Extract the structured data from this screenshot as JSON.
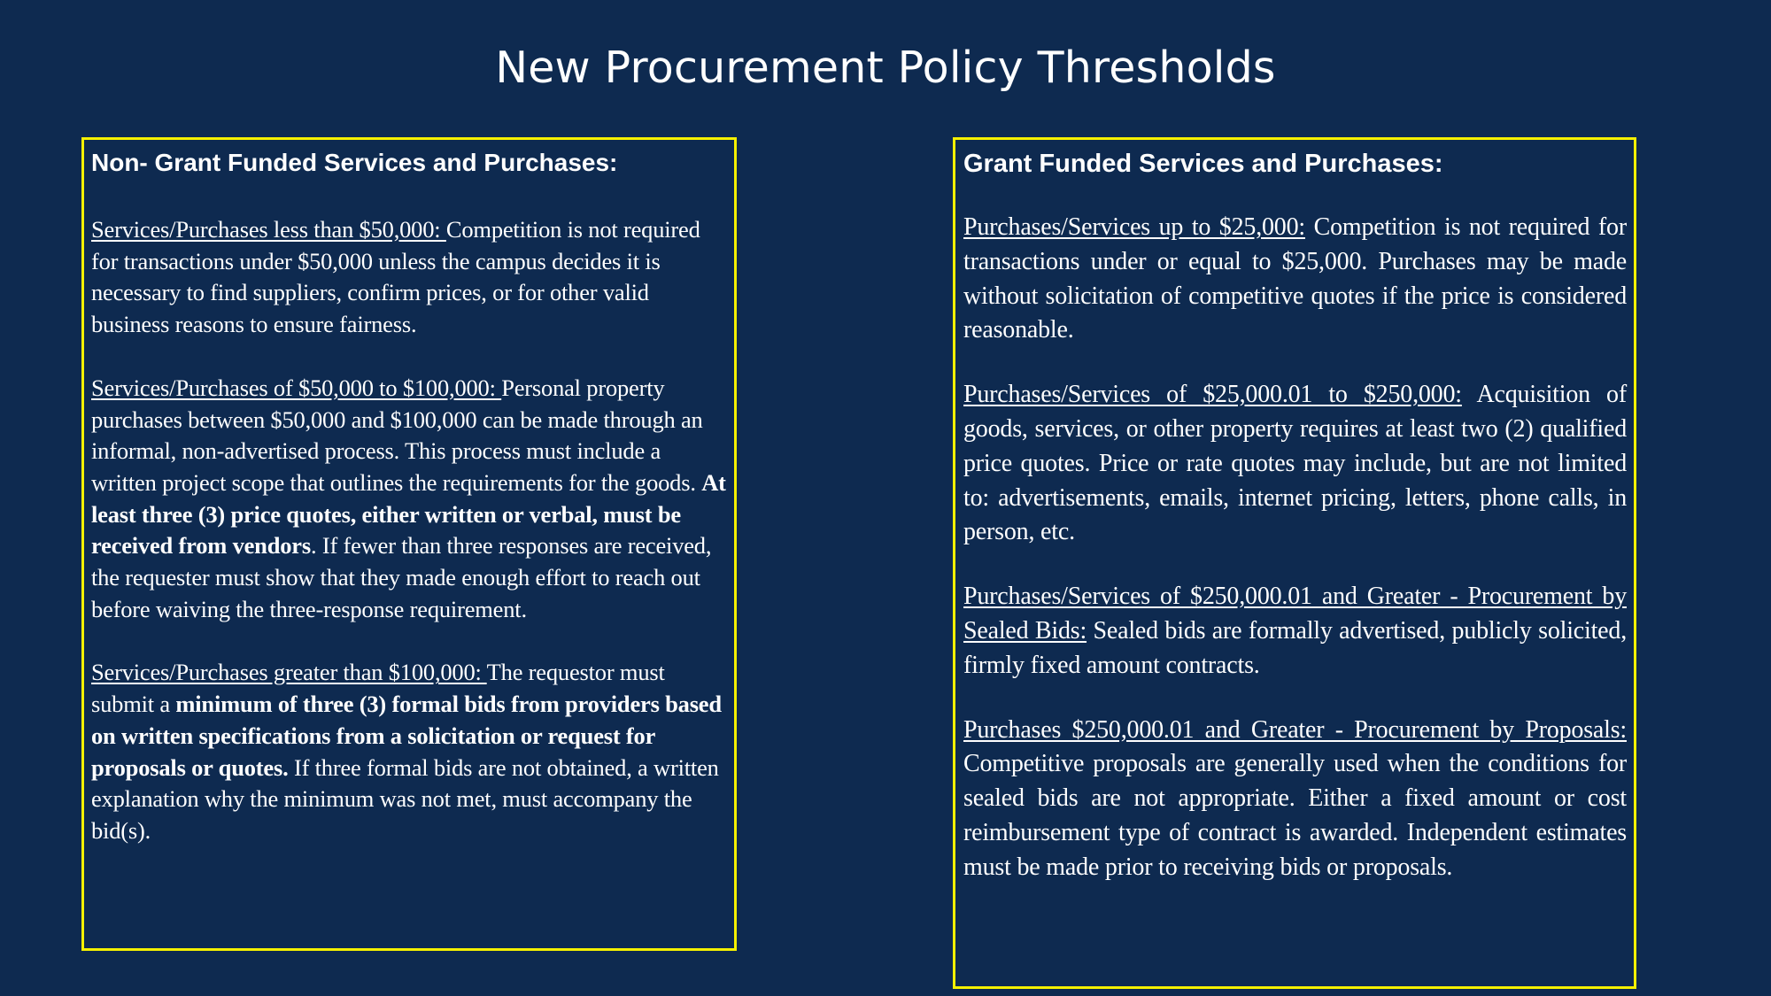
{
  "title": "New Procurement Policy Thresholds",
  "colors": {
    "background": "#0e2a50",
    "box_border": "#f5f000",
    "text": "#ffffff"
  },
  "left": {
    "heading": "Non- Grant Funded Services and Purchases:",
    "paragraphs": [
      {
        "lead": "Services/Purchases less than $50,000: ",
        "t1": "Competition is not required for transactions under $50,000 unless the campus decides it is necessary to find suppliers, confirm prices, or for other valid business reasons to ensure fairness."
      },
      {
        "lead": "Services/Purchases of $50,000 to $100,000: ",
        "t1": "Personal property purchases between $50,000 and $100,000 can be made through an informal, non-advertised process. This process must include a written project scope that outlines the requirements for the goods. ",
        "b1": "At least three (3) price quotes, either written or verbal, must be received from vendors",
        "t2": ". If fewer than three responses are received, the requester must show that they made enough effort to reach out before waiving the three-response requirement."
      },
      {
        "lead": "Services/Purchases greater than $100,000: ",
        "t1": "The requestor must submit a ",
        "b1": "minimum of three (3) formal bids from providers based on written specifications from a solicitation or request for proposals or quotes.",
        "t2": " If three formal bids are not obtained, a written explanation why the minimum was not met, must accompany the bid(s)."
      }
    ]
  },
  "right": {
    "heading": "Grant Funded Services and Purchases:",
    "paragraphs": [
      {
        "lead": "Purchases/Services up to $25,000:",
        "t1": " Competition is not required for transactions under or equal to $25,000. Purchases may be made without solicitation of competitive quotes if the price is considered reasonable."
      },
      {
        "lead": "Purchases/Services of $25,000.01 to $250,000:",
        "t1": " Acquisition of goods, services, or other property requires at least two (2) qualified price quotes. Price or rate quotes may include, but are not limited to: advertisements, emails, internet pricing, letters,  phone calls, in person, etc."
      },
      {
        "lead": "Purchases/Services of $250,000.01 and Greater - Procurement by Sealed Bids:",
        "t1": " Sealed bids are formally advertised, publicly solicited, firmly fixed amount contracts."
      },
      {
        "lead": "Purchases $250,000.01 and Greater - Procurement by Proposals: ",
        "t1": "Competitive proposals are generally used when the conditions for sealed bids are not appropriate. Either a fixed amount or cost reimbursement type of contract is awarded. Independent estimates must be made prior to receiving bids or proposals."
      }
    ]
  }
}
